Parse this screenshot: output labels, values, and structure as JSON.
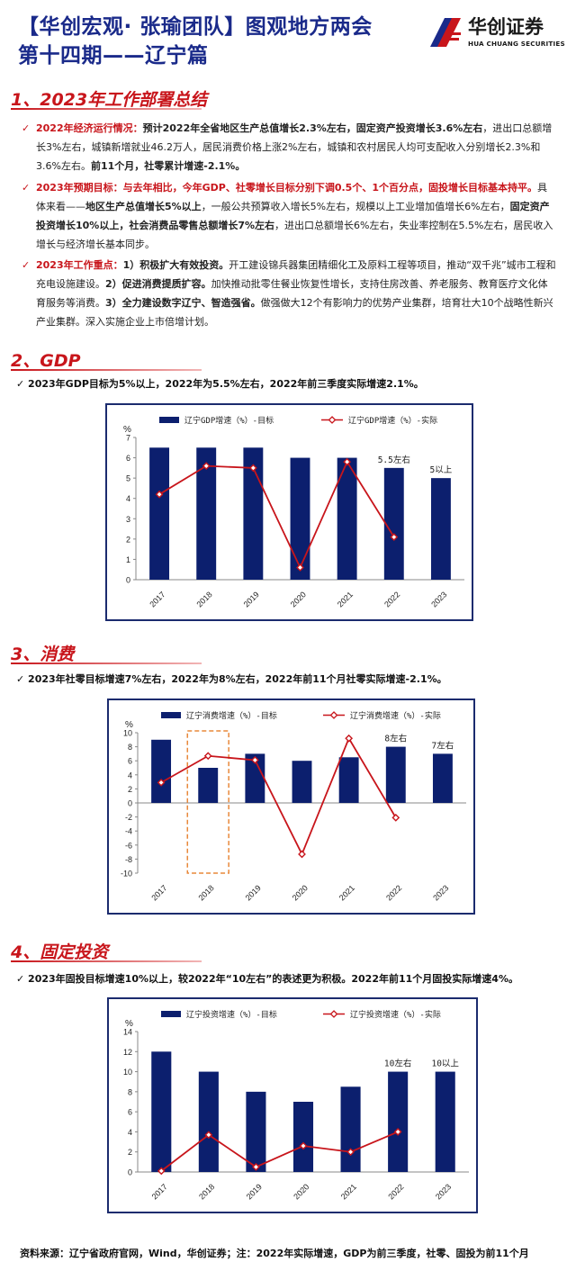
{
  "header": {
    "title_line1": "【华创宏观· 张瑜团队】图观地方两会",
    "title_line2": "第十四期——辽宁篇",
    "logo_cn": "华创证券",
    "logo_en": "HUA CHUANG SECURITIES",
    "logo_icon": "hua-chuang-logo-icon"
  },
  "section1": {
    "title": "1、2023年工作部署总结",
    "bullets": [
      {
        "label": "2022年经济运行情况：",
        "parts": [
          {
            "t": "预计2022年全省地区生产总值增长2.3%左右，固定资产投资增长3.6%左右",
            "bold": true
          },
          {
            "t": "，进出口总额增长3%左右，城镇新增就业46.2万人，居民消费价格上涨2%左右，城镇和农村居民人均可支配收入分别增长2.3%和3.6%左右。",
            "bold": false
          },
          {
            "t": "前11个月，社零累计增速-2.1%。",
            "bold": true
          }
        ]
      },
      {
        "label": "2023年预期目标：",
        "parts": [
          {
            "t": "与去年相比，今年GDP、社零增长目标分别下调0.5个、1个百分点，固投增长目标基本持平。",
            "bold": true,
            "red": true
          },
          {
            "t": "具体来看——",
            "bold": false
          },
          {
            "t": "地区生产总值增长5%以上",
            "bold": true
          },
          {
            "t": "，一般公共预算收入增长5%左右，规模以上工业增加值增长6%左右，",
            "bold": false
          },
          {
            "t": "固定资产投资增长10%以上，社会消费品零售总额增长7%左右",
            "bold": true
          },
          {
            "t": "，进出口总额增长6%左右，失业率控制在5.5%左右，居民收入增长与经济增长基本同步。",
            "bold": false
          }
        ]
      },
      {
        "label": "2023年工作重点：",
        "parts": [
          {
            "t": "1）积极扩大有效投资。",
            "bold": true
          },
          {
            "t": "开工建设锦兵器集团精细化工及原料工程等项目，推动“双千兆”城市工程和充电设施建设。",
            "bold": false
          },
          {
            "t": "2）促进消费提质扩容。",
            "bold": true
          },
          {
            "t": "加快推动批零住餐业恢复性增长，支持住房改善、养老服务、教育医疗文化体育服务等消费。",
            "bold": false
          },
          {
            "t": "3）全力建设数字辽宁、智造强省。",
            "bold": true
          },
          {
            "t": "做强做大12个有影响力的优势产业集群，培育壮大10个战略性新兴产业集群。深入实施企业上市倍增计划。",
            "bold": false
          }
        ]
      }
    ]
  },
  "section2": {
    "title": "2、GDP",
    "bullet": "2023年GDP目标为5%以上，2022年为5.5%左右，2022年前三季度实际增速2.1%。"
  },
  "section3": {
    "title": "3、消费",
    "bullet": "2023年社零目标增速7%左右，2022年为8%左右，2022年前11个月社零实际增速-2.1%。"
  },
  "section4": {
    "title": "4、固定投资",
    "bullet": "2023年固投目标增速10%以上，较2022年“10左右”的表述更为积极。2022年前11个月固投实际增速4%。"
  },
  "chart_data": [
    {
      "type": "bar",
      "unit": "%",
      "categories": [
        "2017",
        "2018",
        "2019",
        "2020",
        "2021",
        "2022",
        "2023"
      ],
      "ylim": [
        0,
        7
      ],
      "yticks": [
        0,
        1,
        2,
        3,
        4,
        5,
        6,
        7
      ],
      "legend_position": "top",
      "series": [
        {
          "name": "辽宁GDP增速（%）-目标",
          "kind": "bar",
          "color": "#0c1f6e",
          "values": [
            6.5,
            6.5,
            6.5,
            6.0,
            6.0,
            5.5,
            5.0
          ]
        },
        {
          "name": "辽宁GDP增速（%）-实际",
          "kind": "line",
          "color": "#c8151b",
          "values": [
            4.2,
            5.6,
            5.5,
            0.6,
            5.8,
            2.1,
            null
          ]
        }
      ],
      "annotations": [
        {
          "category": "2022",
          "value": 5.5,
          "text": "5.5左右"
        },
        {
          "category": "2023",
          "value": 5.0,
          "text": "5以上"
        }
      ]
    },
    {
      "type": "bar",
      "unit": "%",
      "categories": [
        "2017",
        "2018",
        "2019",
        "2020",
        "2021",
        "2022",
        "2023"
      ],
      "ylim": [
        -10,
        10
      ],
      "yticks": [
        -10,
        -8,
        -6,
        -4,
        -2,
        0,
        2,
        4,
        6,
        8,
        10
      ],
      "legend_position": "top",
      "highlight_category": "2018",
      "series": [
        {
          "name": "辽宁消费增速（%）-目标",
          "kind": "bar",
          "color": "#0c1f6e",
          "values": [
            9,
            5,
            7,
            6,
            6.5,
            8,
            7
          ]
        },
        {
          "name": "辽宁消费增速（%）-实际",
          "kind": "line",
          "color": "#c8151b",
          "values": [
            2.9,
            6.7,
            6.1,
            -7.3,
            9.2,
            -2.1,
            null
          ]
        }
      ],
      "annotations": [
        {
          "category": "2022",
          "value": 8,
          "text": "8左右"
        },
        {
          "category": "2023",
          "value": 7,
          "text": "7左右"
        }
      ]
    },
    {
      "type": "bar",
      "unit": "%",
      "categories": [
        "2017",
        "2018",
        "2019",
        "2020",
        "2021",
        "2022",
        "2023"
      ],
      "ylim": [
        0,
        14
      ],
      "yticks": [
        0,
        2,
        4,
        6,
        8,
        10,
        12,
        14
      ],
      "legend_position": "top",
      "series": [
        {
          "name": "辽宁投资增速（%）-目标",
          "kind": "bar",
          "color": "#0c1f6e",
          "values": [
            12,
            10,
            8,
            7,
            8.5,
            10,
            10
          ]
        },
        {
          "name": "辽宁投资增速（%）-实际",
          "kind": "line",
          "color": "#c8151b",
          "values": [
            0.1,
            3.7,
            0.5,
            2.6,
            2.0,
            4.0,
            null
          ]
        }
      ],
      "annotations": [
        {
          "category": "2022",
          "value": 10,
          "text": "10左右"
        },
        {
          "category": "2023",
          "value": 10,
          "text": "10以上"
        }
      ]
    }
  ],
  "footer": "资料来源：辽宁省政府官网，Wind，华创证券；注：2022年实际增速，GDP为前三季度，社零、固投为前11个月"
}
